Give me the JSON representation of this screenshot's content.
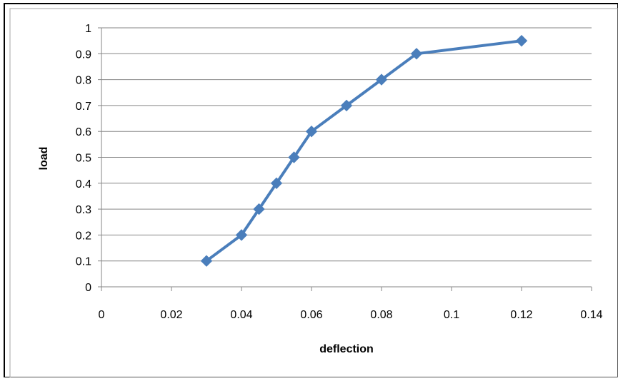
{
  "colors": {
    "series": "#4A7EBB",
    "gridline": "#868686",
    "axis": "#868686",
    "frame_outer": "#000000",
    "frame_inner": "#A6A6A6"
  },
  "chart_data": {
    "type": "line",
    "title": "",
    "xlabel": "deflection",
    "ylabel": "load",
    "xlim": [
      0,
      0.14
    ],
    "ylim": [
      0,
      1
    ],
    "x_ticks": [
      0,
      0.02,
      0.04,
      0.06,
      0.08,
      0.1,
      0.12,
      0.14
    ],
    "x_tick_labels": [
      "0",
      "0.02",
      "0.04",
      "0.06",
      "0.08",
      "0.1",
      "0.12",
      "0.14"
    ],
    "y_ticks": [
      0,
      0.1,
      0.2,
      0.3,
      0.4,
      0.5,
      0.6,
      0.7,
      0.8,
      0.9,
      1
    ],
    "y_tick_labels": [
      "0",
      "0.1",
      "0.2",
      "0.3",
      "0.4",
      "0.5",
      "0.6",
      "0.7",
      "0.8",
      "0.9",
      "1"
    ],
    "grid": "horizontal",
    "legend": "none",
    "marker": "diamond",
    "series": [
      {
        "x": [
          0.03,
          0.04,
          0.045,
          0.05,
          0.055,
          0.06,
          0.07,
          0.08,
          0.09,
          0.12
        ],
        "y": [
          0.1,
          0.2,
          0.3,
          0.4,
          0.5,
          0.6,
          0.7,
          0.8,
          0.9,
          0.95
        ]
      }
    ]
  }
}
